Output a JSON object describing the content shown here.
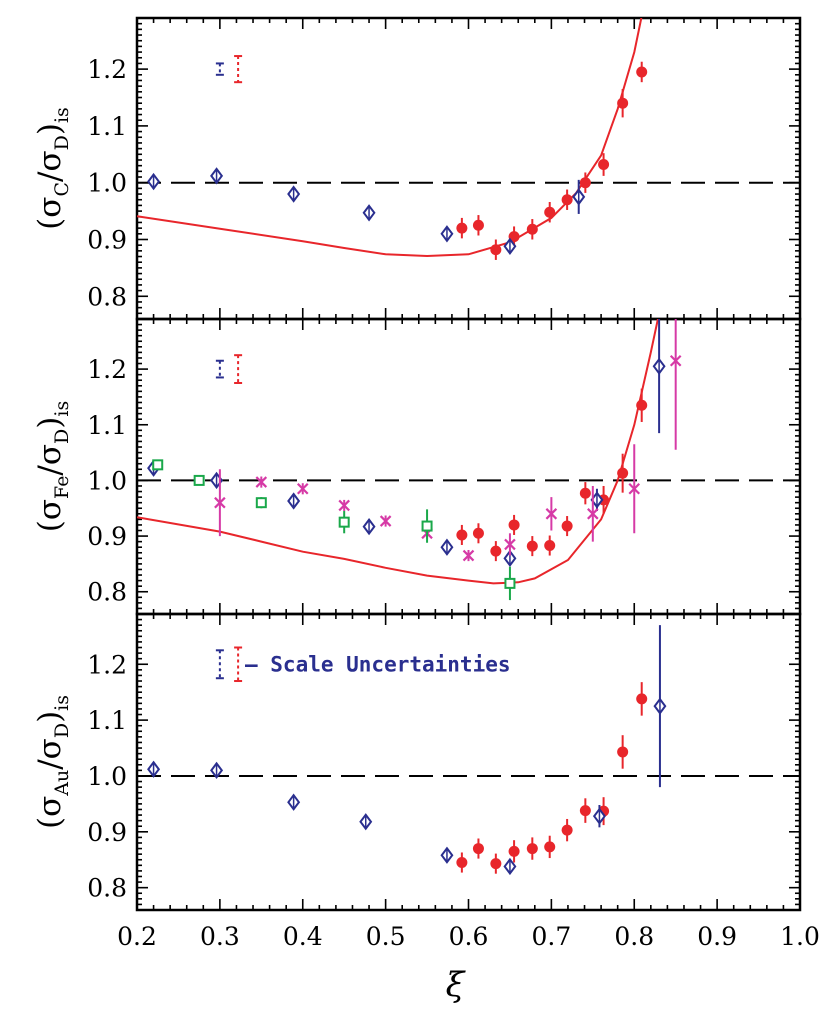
{
  "colors": {
    "red": "#e8262b",
    "blue": "#2a2f8f",
    "magenta": "#d63aa6",
    "green": "#1aa84a",
    "axis": "#000000",
    "dashed": "#000000"
  },
  "x_label": "ξ",
  "annotation": "– Scale Uncertainties",
  "chart_data": [
    {
      "type": "scatter",
      "panel": "top",
      "ylabel": "(σC/σD)is",
      "ylabel_main": "σ",
      "ylabel_sub1": "C",
      "ylabel_sub2": "D",
      "ylabel_tail": "is",
      "xlim": [
        0.2,
        1.0
      ],
      "ylim": [
        0.76,
        1.29
      ],
      "xticks": [
        0.2,
        0.3,
        0.4,
        0.5,
        0.6,
        0.7,
        0.8,
        0.9,
        1.0
      ],
      "yticks": [
        0.8,
        0.9,
        1.0,
        1.1,
        1.2
      ],
      "reference_line": 1.0,
      "scale_uncertainty": [
        {
          "color": "blue",
          "x": 0.3,
          "center": 1.2,
          "err": 0.01
        },
        {
          "color": "red",
          "x": 0.322,
          "center": 1.2,
          "err": 0.023
        }
      ],
      "series": [
        {
          "marker": "circle",
          "color": "red",
          "x": [
            0.592,
            0.612,
            0.633,
            0.655,
            0.677,
            0.698,
            0.719,
            0.741,
            0.763,
            0.786,
            0.809
          ],
          "y": [
            0.92,
            0.925,
            0.882,
            0.905,
            0.918,
            0.948,
            0.97,
            1.0,
            1.032,
            1.14,
            1.195
          ],
          "err": [
            0.018,
            0.018,
            0.018,
            0.018,
            0.018,
            0.018,
            0.018,
            0.018,
            0.02,
            0.025,
            0.018
          ]
        },
        {
          "marker": "diamond",
          "color": "blue",
          "x": [
            0.22,
            0.296,
            0.389,
            0.48,
            0.574,
            0.65,
            0.733
          ],
          "y": [
            1.002,
            1.012,
            0.98,
            0.947,
            0.91,
            0.888,
            0.975
          ],
          "err": [
            0.005,
            0.005,
            0.005,
            0.005,
            0.005,
            0.01,
            0.03
          ]
        }
      ],
      "curve": {
        "color": "red",
        "x": [
          0.2,
          0.3,
          0.4,
          0.45,
          0.5,
          0.55,
          0.6,
          0.65,
          0.7,
          0.73,
          0.76,
          0.78,
          0.8,
          0.81
        ],
        "y": [
          0.941,
          0.919,
          0.897,
          0.885,
          0.874,
          0.871,
          0.874,
          0.895,
          0.938,
          0.982,
          1.048,
          1.13,
          1.23,
          1.3
        ]
      }
    },
    {
      "type": "scatter",
      "panel": "middle",
      "ylabel": "(σFe/σD)is",
      "ylabel_main": "σ",
      "ylabel_sub1": "Fe",
      "ylabel_sub2": "D",
      "ylabel_tail": "is",
      "xlim": [
        0.2,
        1.0
      ],
      "ylim": [
        0.76,
        1.29
      ],
      "xticks": [
        0.2,
        0.3,
        0.4,
        0.5,
        0.6,
        0.7,
        0.8,
        0.9,
        1.0
      ],
      "yticks": [
        0.8,
        0.9,
        1.0,
        1.1,
        1.2
      ],
      "reference_line": 1.0,
      "scale_uncertainty": [
        {
          "color": "blue",
          "x": 0.3,
          "center": 1.2,
          "err": 0.015
        },
        {
          "color": "red",
          "x": 0.322,
          "center": 1.2,
          "err": 0.025
        }
      ],
      "series": [
        {
          "marker": "circle",
          "color": "red",
          "x": [
            0.592,
            0.612,
            0.633,
            0.655,
            0.677,
            0.698,
            0.719,
            0.741,
            0.763,
            0.786,
            0.809
          ],
          "y": [
            0.902,
            0.905,
            0.873,
            0.92,
            0.882,
            0.883,
            0.918,
            0.977,
            0.965,
            1.013,
            1.135
          ],
          "err": [
            0.018,
            0.018,
            0.018,
            0.018,
            0.018,
            0.018,
            0.018,
            0.02,
            0.025,
            0.035,
            0.03
          ]
        },
        {
          "marker": "diamond",
          "color": "blue",
          "x": [
            0.22,
            0.296,
            0.389,
            0.48,
            0.574,
            0.65,
            0.755,
            0.83
          ],
          "y": [
            1.022,
            1.0,
            0.963,
            0.917,
            0.88,
            0.86,
            0.965,
            1.205
          ],
          "err": [
            0.005,
            0.005,
            0.005,
            0.005,
            0.005,
            0.01,
            0.02,
            0.12
          ]
        },
        {
          "marker": "cross",
          "color": "magenta",
          "x": [
            0.3,
            0.35,
            0.4,
            0.45,
            0.5,
            0.55,
            0.6,
            0.65,
            0.7,
            0.75,
            0.8,
            0.85
          ],
          "y": [
            0.96,
            0.997,
            0.985,
            0.955,
            0.927,
            0.905,
            0.865,
            0.885,
            0.94,
            0.94,
            0.985,
            1.215
          ],
          "err": [
            0.06,
            0.01,
            0.01,
            0.01,
            0.01,
            0.01,
            0.01,
            0.02,
            0.03,
            0.05,
            0.08,
            0.16
          ]
        },
        {
          "marker": "square",
          "color": "green",
          "x": [
            0.225,
            0.275,
            0.35,
            0.45,
            0.55,
            0.65
          ],
          "y": [
            1.028,
            1.0,
            0.96,
            0.925,
            0.918,
            0.815
          ],
          "err": [
            0.005,
            0.005,
            0.01,
            0.02,
            0.03,
            0.03
          ]
        }
      ],
      "curve": {
        "color": "red",
        "x": [
          0.2,
          0.3,
          0.35,
          0.4,
          0.45,
          0.5,
          0.55,
          0.6,
          0.63,
          0.66,
          0.68,
          0.72,
          0.76,
          0.78,
          0.8,
          0.82,
          0.83
        ],
        "y": [
          0.934,
          0.908,
          0.89,
          0.872,
          0.859,
          0.843,
          0.829,
          0.82,
          0.815,
          0.817,
          0.824,
          0.857,
          0.93,
          1.0,
          1.1,
          1.23,
          1.3
        ]
      }
    },
    {
      "type": "scatter",
      "panel": "bottom",
      "ylabel": "(σAu/σD)is",
      "ylabel_main": "σ",
      "ylabel_sub1": "Au",
      "ylabel_sub2": "D",
      "ylabel_tail": "is",
      "xlim": [
        0.2,
        1.0
      ],
      "ylim": [
        0.76,
        1.29
      ],
      "xticks": [
        0.2,
        0.3,
        0.4,
        0.5,
        0.6,
        0.7,
        0.8,
        0.9,
        1.0
      ],
      "yticks": [
        0.8,
        0.9,
        1.0,
        1.1,
        1.2
      ],
      "reference_line": 1.0,
      "scale_uncertainty": [
        {
          "color": "blue",
          "x": 0.3,
          "center": 1.2,
          "err": 0.025
        },
        {
          "color": "red",
          "x": 0.322,
          "center": 1.2,
          "err": 0.03
        }
      ],
      "series": [
        {
          "marker": "circle",
          "color": "red",
          "x": [
            0.592,
            0.612,
            0.633,
            0.655,
            0.677,
            0.698,
            0.719,
            0.741,
            0.763,
            0.786,
            0.809
          ],
          "y": [
            0.845,
            0.87,
            0.843,
            0.865,
            0.87,
            0.873,
            0.903,
            0.938,
            0.937,
            1.043,
            1.138
          ],
          "err": [
            0.018,
            0.018,
            0.018,
            0.02,
            0.02,
            0.02,
            0.02,
            0.022,
            0.025,
            0.03,
            0.03
          ]
        },
        {
          "marker": "diamond",
          "color": "blue",
          "x": [
            0.22,
            0.296,
            0.389,
            0.476,
            0.574,
            0.65,
            0.758,
            0.831
          ],
          "y": [
            1.012,
            1.01,
            0.953,
            0.918,
            0.858,
            0.838,
            0.928,
            1.125
          ],
          "err": [
            0.005,
            0.005,
            0.005,
            0.005,
            0.005,
            0.01,
            0.02,
            0.145
          ]
        }
      ]
    }
  ]
}
